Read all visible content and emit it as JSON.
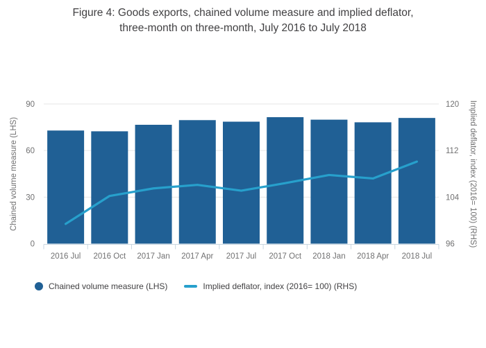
{
  "title": {
    "line1": "Figure 4: Goods exports, chained volume measure and implied deflator,",
    "line2": "three-month on three-month, July 2016 to July 2018"
  },
  "colors": {
    "bar": "#206095",
    "line": "#27A0CC",
    "grid": "#e6e6e6",
    "axis": "#c8d6e0",
    "tick_label": "#707071",
    "title_text": "#414042",
    "legend_text": "#414042"
  },
  "chart_data": {
    "type": "bar",
    "subtype": "bar-and-line-dual-axis",
    "categories": [
      "2016 Jul",
      "2016 Oct",
      "2017 Jan",
      "2017 Apr",
      "2017 Jul",
      "2017 Oct",
      "2018 Jan",
      "2018 Apr",
      "2018 Jul"
    ],
    "series": [
      {
        "name": "Chained volume measure (LHS)",
        "type": "bar",
        "axis": "left",
        "values": [
          72.9,
          72.4,
          76.6,
          79.6,
          78.6,
          81.5,
          79.9,
          78.2,
          81.0
        ]
      },
      {
        "name": "Implied deflator, index (2016= 100) (RHS)",
        "type": "line",
        "axis": "right",
        "values": [
          99.4,
          104.2,
          105.5,
          106.1,
          105.1,
          106.4,
          107.8,
          107.2,
          110.1
        ]
      }
    ],
    "title": "Figure 4: Goods exports, chained volume measure and implied deflator, three-month on three-month, July 2016 to July 2018",
    "left_axis": {
      "label": "Chained volume measure (LHS)",
      "ticks": [
        0,
        30,
        60,
        90
      ],
      "range": [
        0,
        90
      ]
    },
    "right_axis": {
      "label": "Implied deflator, index (2016= 100) (RHS)",
      "ticks": [
        96,
        104,
        112,
        120
      ],
      "range": [
        96,
        120
      ]
    },
    "grid": true,
    "legend_position": "bottom-left"
  },
  "legend": {
    "items": [
      {
        "label": "Chained volume measure (LHS)",
        "marker": "circle"
      },
      {
        "label": "Implied deflator, index (2016= 100) (RHS)",
        "marker": "line"
      }
    ]
  }
}
